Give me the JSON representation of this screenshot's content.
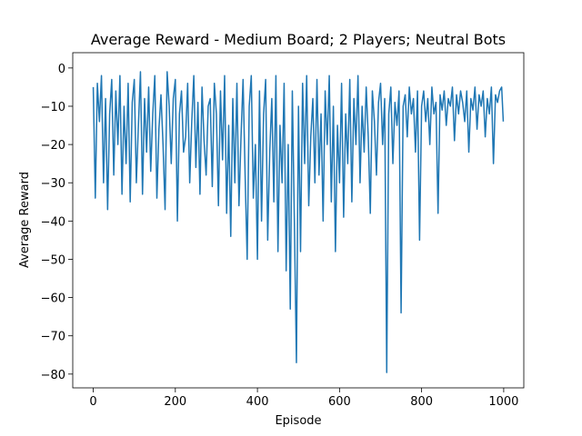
{
  "chart_data": {
    "type": "line",
    "title": "Average Reward - Medium Board; 2 Players; Neutral Bots",
    "xlabel": "Episode",
    "ylabel": "Average Reward",
    "color": "#1f77b4",
    "x": [
      0,
      5,
      10,
      15,
      20,
      25,
      30,
      35,
      40,
      45,
      50,
      55,
      60,
      65,
      70,
      75,
      80,
      85,
      90,
      95,
      100,
      105,
      110,
      115,
      120,
      125,
      130,
      135,
      140,
      145,
      150,
      155,
      160,
      165,
      170,
      175,
      180,
      185,
      190,
      195,
      200,
      205,
      210,
      215,
      220,
      225,
      230,
      235,
      240,
      245,
      250,
      255,
      260,
      265,
      270,
      275,
      280,
      285,
      290,
      295,
      300,
      305,
      310,
      315,
      320,
      325,
      330,
      335,
      340,
      345,
      350,
      355,
      360,
      365,
      370,
      375,
      380,
      385,
      390,
      395,
      400,
      405,
      410,
      415,
      420,
      425,
      430,
      435,
      440,
      445,
      450,
      455,
      460,
      465,
      470,
      475,
      480,
      485,
      490,
      495,
      500,
      505,
      510,
      515,
      520,
      525,
      530,
      535,
      540,
      545,
      550,
      555,
      560,
      565,
      570,
      575,
      580,
      585,
      590,
      595,
      600,
      605,
      610,
      615,
      620,
      625,
      630,
      635,
      640,
      645,
      650,
      655,
      660,
      665,
      670,
      675,
      680,
      685,
      690,
      695,
      700,
      705,
      710,
      715,
      720,
      725,
      730,
      735,
      740,
      745,
      750,
      755,
      760,
      765,
      770,
      775,
      780,
      785,
      790,
      795,
      800,
      805,
      810,
      815,
      820,
      825,
      830,
      835,
      840,
      845,
      850,
      855,
      860,
      865,
      870,
      875,
      880,
      885,
      890,
      895,
      900,
      905,
      910,
      915,
      920,
      925,
      930,
      935,
      940,
      945,
      950,
      955,
      960,
      965,
      970,
      975,
      980,
      985,
      990,
      995,
      999
    ],
    "values": [
      -5,
      -34,
      -4,
      -14,
      -2,
      -30,
      -8,
      -37,
      -12,
      -3,
      -28,
      -6,
      -20,
      -2,
      -33,
      -10,
      -25,
      -4,
      -35,
      -9,
      -3,
      -30,
      -15,
      -1,
      -33,
      -8,
      -22,
      -5,
      -27,
      -12,
      -2,
      -34,
      -16,
      -7,
      -20,
      -37,
      -1,
      -10,
      -25,
      -8,
      -3,
      -40,
      -12,
      -6,
      -22,
      -18,
      -4,
      -30,
      -14,
      -2,
      -26,
      -9,
      -33,
      -5,
      -19,
      -28,
      -10,
      -8,
      -31,
      -4,
      -12,
      -36,
      -6,
      -24,
      -2,
      -38,
      -15,
      -44,
      -8,
      -30,
      -4,
      -36,
      -18,
      -3,
      -28,
      -50,
      -10,
      -2,
      -34,
      -20,
      -50,
      -6,
      -40,
      -12,
      -3,
      -45,
      -22,
      -8,
      -35,
      -2,
      -48,
      -15,
      -30,
      -4,
      -53,
      -20,
      -63,
      -6,
      -40,
      -77,
      -10,
      -48,
      -4,
      -25,
      -2,
      -36,
      -18,
      -8,
      -30,
      -3,
      -28,
      -12,
      -40,
      -6,
      -20,
      -2,
      -35,
      -10,
      -48,
      -15,
      -30,
      -4,
      -39,
      -12,
      -25,
      -3,
      -35,
      -8,
      -20,
      -2,
      -30,
      -10,
      -22,
      -5,
      -18,
      -38,
      -6,
      -14,
      -28,
      -9,
      -4,
      -20,
      -8,
      -79.6,
      -12,
      -5,
      -25,
      -9,
      -15,
      -6,
      -64,
      -10,
      -7,
      -18,
      -5,
      -12,
      -8,
      -22,
      -6,
      -45,
      -10,
      -6,
      -14,
      -8,
      -20,
      -5,
      -12,
      -9,
      -38,
      -7,
      -11,
      -6,
      -15,
      -8,
      -10,
      -5,
      -19,
      -7,
      -12,
      -6,
      -9,
      -14,
      -6,
      -22,
      -8,
      -11,
      -5,
      -16,
      -7,
      -10,
      -6,
      -18,
      -8,
      -12,
      -5,
      -25,
      -7,
      -9,
      -6,
      -5,
      -14
    ],
    "xlim": [
      -49.95,
      1048.95
    ],
    "ylim": [
      -83.6,
      4.0
    ],
    "xticks": [
      0,
      200,
      400,
      600,
      800,
      1000
    ],
    "yticks": [
      0,
      {
        "value": -10,
        "label": "−10"
      },
      {
        "value": -20,
        "label": "−20"
      },
      {
        "value": -30,
        "label": "−30"
      },
      {
        "value": -40,
        "label": "−40"
      },
      {
        "value": -50,
        "label": "−50"
      },
      {
        "value": -60,
        "label": "−60"
      },
      {
        "value": -70,
        "label": "−70"
      },
      {
        "value": -80,
        "label": "−80"
      }
    ]
  }
}
